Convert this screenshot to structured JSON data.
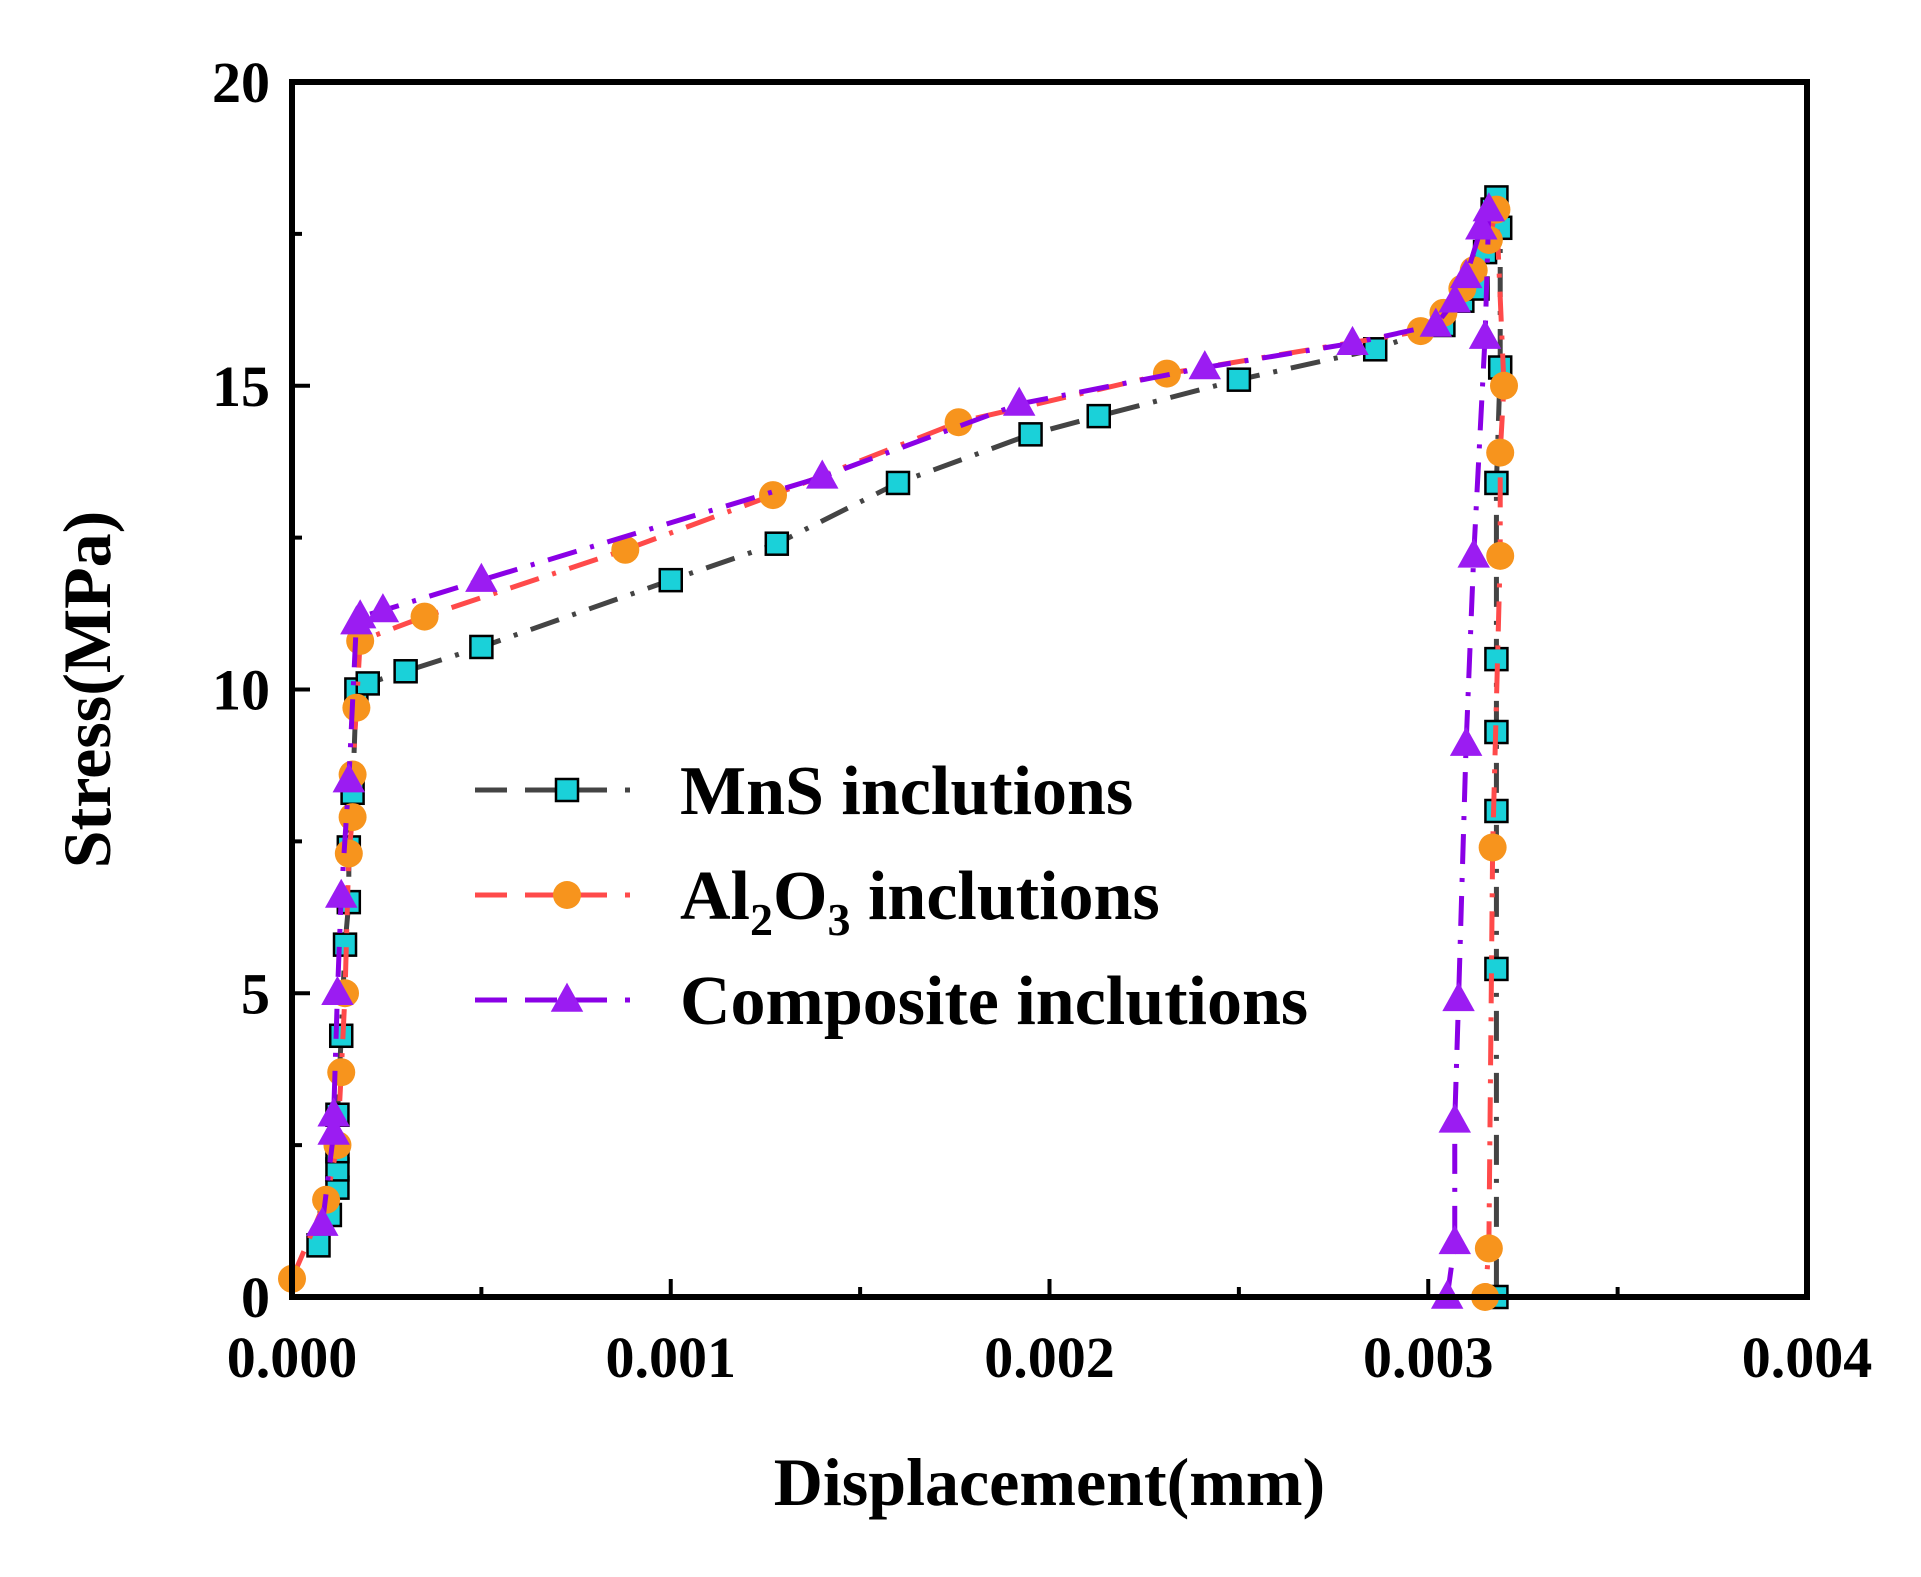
{
  "chart_data": {
    "type": "line",
    "xlabel": "Displacement(mm)",
    "ylabel": "Stress(MPa)",
    "xlim": [
      0,
      0.004
    ],
    "ylim": [
      0,
      20
    ],
    "x_ticks": [
      "0.000",
      "0.001",
      "0.002",
      "0.003",
      "0.004"
    ],
    "y_ticks": [
      "0",
      "5",
      "10",
      "15",
      "20"
    ],
    "grid": false,
    "legend_position": "center",
    "series": [
      {
        "name": "MnS inclutions",
        "name_parts": [
          "MnS inclutions"
        ],
        "marker": "square",
        "line_color": "#444444",
        "marker_color": "#1ad1d9",
        "points": [
          [
            7e-05,
            0.85
          ],
          [
            0.0001,
            1.35
          ],
          [
            0.00012,
            1.8
          ],
          [
            0.00012,
            2.1
          ],
          [
            0.00012,
            2.4
          ],
          [
            0.00012,
            3.0
          ],
          [
            0.00013,
            4.3
          ],
          [
            0.00014,
            5.8
          ],
          [
            0.00015,
            6.5
          ],
          [
            0.00015,
            7.4
          ],
          [
            0.00016,
            8.3
          ],
          [
            0.00017,
            10.0
          ],
          [
            0.0002,
            10.1
          ],
          [
            0.0003,
            10.3
          ],
          [
            0.0005,
            10.7
          ],
          [
            0.001,
            11.8
          ],
          [
            0.00128,
            12.4
          ],
          [
            0.0016,
            13.4
          ],
          [
            0.00195,
            14.2
          ],
          [
            0.00213,
            14.5
          ],
          [
            0.0025,
            15.1
          ],
          [
            0.00286,
            15.6
          ],
          [
            0.00304,
            16.0
          ],
          [
            0.00309,
            16.4
          ],
          [
            0.00313,
            16.6
          ],
          [
            0.00315,
            17.2
          ],
          [
            0.00317,
            17.9
          ],
          [
            0.00318,
            18.1
          ],
          [
            0.00319,
            17.6
          ],
          [
            0.00319,
            15.3
          ],
          [
            0.00318,
            13.4
          ],
          [
            0.00318,
            10.5
          ],
          [
            0.00318,
            9.3
          ],
          [
            0.00318,
            8.0
          ],
          [
            0.00318,
            5.4
          ],
          [
            0.00318,
            0.0
          ]
        ]
      },
      {
        "name": "Al2O3 inclutions",
        "name_parts": [
          "Al",
          "2",
          "O",
          "3",
          " inclutions"
        ],
        "marker": "circle",
        "line_color": "#ff4a4a",
        "marker_color": "#f7941d",
        "points": [
          [
            0.0,
            0.3
          ],
          [
            9e-05,
            1.6
          ],
          [
            0.00012,
            2.5
          ],
          [
            0.00013,
            3.7
          ],
          [
            0.00014,
            5.0
          ],
          [
            0.00015,
            7.3
          ],
          [
            0.00016,
            7.9
          ],
          [
            0.00016,
            8.6
          ],
          [
            0.00017,
            9.7
          ],
          [
            0.00018,
            10.8
          ],
          [
            0.00035,
            11.2
          ],
          [
            0.00088,
            12.3
          ],
          [
            0.00127,
            13.2
          ],
          [
            0.00176,
            14.4
          ],
          [
            0.00231,
            15.2
          ],
          [
            0.00298,
            15.9
          ],
          [
            0.00304,
            16.2
          ],
          [
            0.00309,
            16.6
          ],
          [
            0.00312,
            16.9
          ],
          [
            0.00316,
            17.4
          ],
          [
            0.00318,
            17.9
          ],
          [
            0.0032,
            15.0
          ],
          [
            0.00319,
            13.9
          ],
          [
            0.00319,
            12.2
          ],
          [
            0.00317,
            7.4
          ],
          [
            0.00316,
            0.8
          ],
          [
            0.00315,
            0.0
          ]
        ]
      },
      {
        "name": "Composite inclutions",
        "name_parts": [
          "Composite inclutions"
        ],
        "marker": "triangle",
        "line_color": "#8a00e6",
        "marker_color": "#9b1cf2",
        "points": [
          [
            8e-05,
            1.2
          ],
          [
            0.00011,
            2.7
          ],
          [
            0.00011,
            3.0
          ],
          [
            0.00012,
            5.0
          ],
          [
            0.00013,
            6.6
          ],
          [
            0.00015,
            8.5
          ],
          [
            0.00017,
            11.1
          ],
          [
            0.00018,
            11.2
          ],
          [
            0.00024,
            11.3
          ],
          [
            0.0005,
            11.8
          ],
          [
            0.0014,
            13.5
          ],
          [
            0.00192,
            14.7
          ],
          [
            0.00241,
            15.3
          ],
          [
            0.0028,
            15.7
          ],
          [
            0.00302,
            16.0
          ],
          [
            0.00307,
            16.4
          ],
          [
            0.0031,
            16.8
          ],
          [
            0.00314,
            17.6
          ],
          [
            0.00316,
            17.9
          ],
          [
            0.00315,
            15.8
          ],
          [
            0.00312,
            12.2
          ],
          [
            0.0031,
            9.1
          ],
          [
            0.00308,
            4.9
          ],
          [
            0.00307,
            2.9
          ],
          [
            0.00307,
            0.9
          ],
          [
            0.00305,
            0.0
          ]
        ]
      }
    ]
  }
}
